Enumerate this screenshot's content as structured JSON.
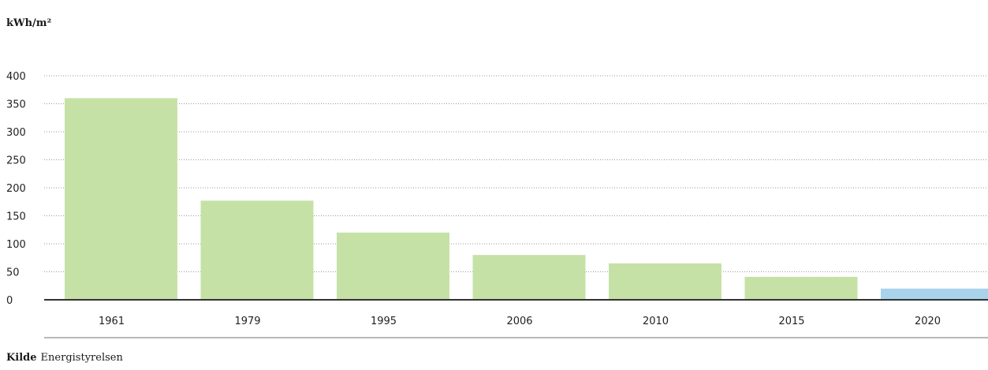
{
  "chart_data": {
    "type": "bar",
    "ylabel": "kWh/m²",
    "categories": [
      "1961",
      "1979",
      "1995",
      "2006",
      "2010",
      "2015",
      "2020"
    ],
    "values": [
      360,
      177,
      120,
      80,
      65,
      41,
      20
    ],
    "ylim": [
      0,
      400
    ],
    "yticks": [
      0,
      50,
      100,
      150,
      200,
      250,
      300,
      350,
      400
    ],
    "grid": true,
    "bar_colors": [
      "#c6e1a6",
      "#c6e1a6",
      "#c6e1a6",
      "#c6e1a6",
      "#c6e1a6",
      "#c6e1a6",
      "#a9d3eb"
    ]
  },
  "source": {
    "label": "Kilde",
    "text": "Energistyrelsen"
  }
}
